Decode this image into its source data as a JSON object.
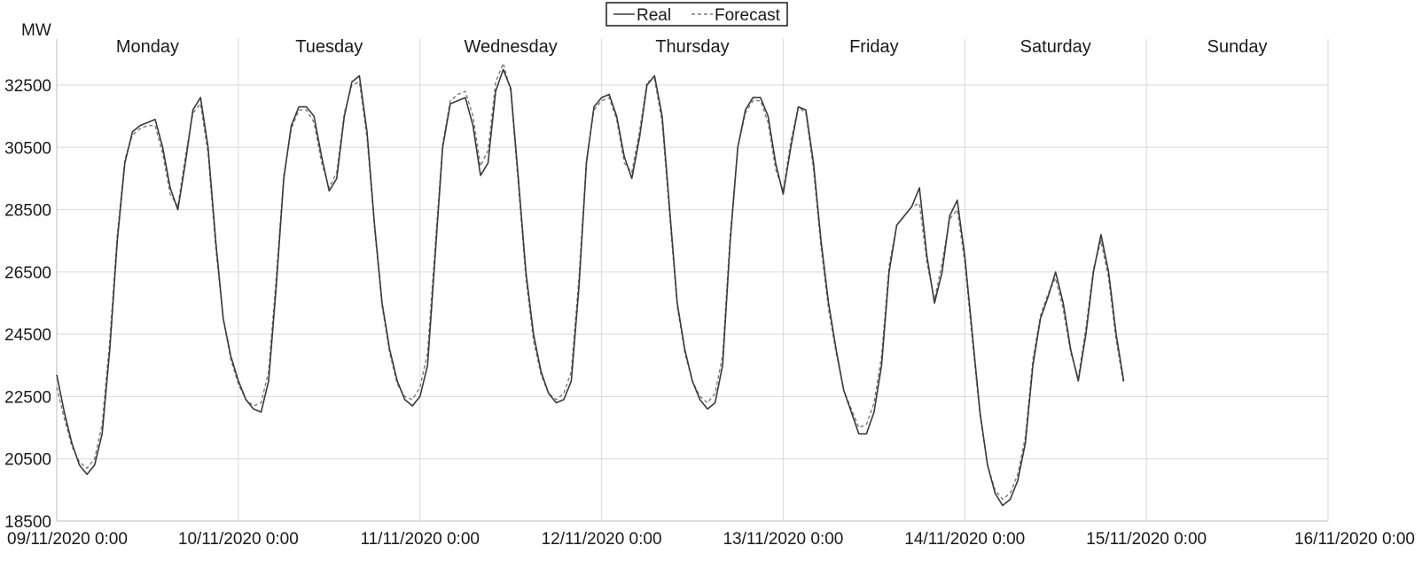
{
  "chart_data": {
    "type": "line",
    "ylabel": "MW",
    "ylim": [
      18500,
      34000
    ],
    "y_ticks": [
      "18500",
      "20500",
      "22500",
      "24500",
      "26500",
      "28500",
      "30500",
      "32500"
    ],
    "x_tick_labels": [
      "09/11/2020 0:00",
      "10/11/2020 0:00",
      "11/11/2020 0:00",
      "12/11/2020 0:00",
      "13/11/2020 0:00",
      "14/11/2020 0:00",
      "15/11/2020 0:00",
      "16/11/2020 0:00"
    ],
    "day_labels": [
      "Monday",
      "Tuesday",
      "Wednesday",
      "Thursday",
      "Friday",
      "Saturday",
      "Sunday"
    ],
    "grid": true,
    "legend": {
      "position": "top-center"
    },
    "x_units": "hours since 09/11/2020 0:00",
    "series": [
      {
        "name": "Real",
        "style": "solid",
        "color": "#3a3a3a",
        "points": [
          [
            0,
            23200
          ],
          [
            1,
            22000
          ],
          [
            2,
            21000
          ],
          [
            3,
            20300
          ],
          [
            4,
            20000
          ],
          [
            5,
            20300
          ],
          [
            6,
            21300
          ],
          [
            7,
            24000
          ],
          [
            8,
            27500
          ],
          [
            9,
            30000
          ],
          [
            10,
            31000
          ],
          [
            11,
            31200
          ],
          [
            12,
            31300
          ],
          [
            13,
            31400
          ],
          [
            14,
            30500
          ],
          [
            15,
            29200
          ],
          [
            16,
            28500
          ],
          [
            17,
            30000
          ],
          [
            18,
            31700
          ],
          [
            19,
            32100
          ],
          [
            20,
            30500
          ],
          [
            21,
            27500
          ],
          [
            22,
            25000
          ],
          [
            23,
            23800
          ],
          [
            24,
            23000
          ],
          [
            25,
            22400
          ],
          [
            26,
            22100
          ],
          [
            27,
            22000
          ],
          [
            28,
            23000
          ],
          [
            29,
            26000
          ],
          [
            30,
            29500
          ],
          [
            31,
            31200
          ],
          [
            32,
            31800
          ],
          [
            33,
            31800
          ],
          [
            34,
            31500
          ],
          [
            35,
            30200
          ],
          [
            36,
            29100
          ],
          [
            37,
            29500
          ],
          [
            38,
            31500
          ],
          [
            39,
            32600
          ],
          [
            40,
            32800
          ],
          [
            41,
            31000
          ],
          [
            42,
            28000
          ],
          [
            43,
            25500
          ],
          [
            44,
            24000
          ],
          [
            45,
            23000
          ],
          [
            46,
            22400
          ],
          [
            47,
            22200
          ],
          [
            48,
            22500
          ],
          [
            49,
            23500
          ],
          [
            50,
            27000
          ],
          [
            51,
            30500
          ],
          [
            52,
            31900
          ],
          [
            53,
            32000
          ],
          [
            54,
            32100
          ],
          [
            55,
            31200
          ],
          [
            56,
            29600
          ],
          [
            57,
            30000
          ],
          [
            58,
            32300
          ],
          [
            59,
            33000
          ],
          [
            60,
            32400
          ],
          [
            61,
            29500
          ],
          [
            62,
            26500
          ],
          [
            63,
            24500
          ],
          [
            64,
            23300
          ],
          [
            65,
            22600
          ],
          [
            66,
            22300
          ],
          [
            67,
            22400
          ],
          [
            68,
            23000
          ],
          [
            69,
            26000
          ],
          [
            70,
            30000
          ],
          [
            71,
            31800
          ],
          [
            72,
            32100
          ],
          [
            73,
            32200
          ],
          [
            74,
            31500
          ],
          [
            75,
            30200
          ],
          [
            76,
            29500
          ],
          [
            77,
            30800
          ],
          [
            78,
            32500
          ],
          [
            79,
            32800
          ],
          [
            80,
            31500
          ],
          [
            81,
            28500
          ],
          [
            82,
            25500
          ],
          [
            83,
            24000
          ],
          [
            84,
            23000
          ],
          [
            85,
            22400
          ],
          [
            86,
            22100
          ],
          [
            87,
            22300
          ],
          [
            88,
            23500
          ],
          [
            89,
            27500
          ],
          [
            90,
            30500
          ],
          [
            91,
            31700
          ],
          [
            92,
            32100
          ],
          [
            93,
            32100
          ],
          [
            94,
            31500
          ],
          [
            95,
            30000
          ],
          [
            96,
            29000
          ],
          [
            97,
            30500
          ],
          [
            98,
            31800
          ],
          [
            99,
            31700
          ],
          [
            100,
            30000
          ],
          [
            101,
            27500
          ],
          [
            102,
            25500
          ],
          [
            103,
            24000
          ],
          [
            104,
            22700
          ],
          [
            105,
            22000
          ],
          [
            106,
            21300
          ],
          [
            107,
            21300
          ],
          [
            108,
            22000
          ],
          [
            109,
            23500
          ],
          [
            110,
            26500
          ],
          [
            111,
            28000
          ],
          [
            112,
            28300
          ],
          [
            113,
            28600
          ],
          [
            114,
            29200
          ],
          [
            115,
            27000
          ],
          [
            116,
            25500
          ],
          [
            117,
            26500
          ],
          [
            118,
            28300
          ],
          [
            119,
            28800
          ],
          [
            120,
            27000
          ],
          [
            121,
            24500
          ],
          [
            122,
            22000
          ],
          [
            123,
            20300
          ],
          [
            124,
            19400
          ],
          [
            125,
            19000
          ],
          [
            126,
            19200
          ],
          [
            127,
            19800
          ],
          [
            128,
            21000
          ],
          [
            129,
            23500
          ],
          [
            130,
            25000
          ],
          [
            131,
            25700
          ],
          [
            132,
            26500
          ],
          [
            133,
            25500
          ],
          [
            134,
            24000
          ],
          [
            135,
            23000
          ],
          [
            136,
            24500
          ],
          [
            137,
            26500
          ],
          [
            138,
            27700
          ],
          [
            139,
            26500
          ],
          [
            140,
            24500
          ],
          [
            141,
            23000
          ]
        ]
      },
      {
        "name": "Forecast",
        "style": "dashed",
        "color": "#7a7a7a",
        "points": [
          [
            0,
            22800
          ],
          [
            1,
            21800
          ],
          [
            2,
            20900
          ],
          [
            3,
            20400
          ],
          [
            4,
            20200
          ],
          [
            5,
            20500
          ],
          [
            6,
            21600
          ],
          [
            7,
            24300
          ],
          [
            8,
            27700
          ],
          [
            9,
            30100
          ],
          [
            10,
            30900
          ],
          [
            11,
            31100
          ],
          [
            12,
            31200
          ],
          [
            13,
            31200
          ],
          [
            14,
            30300
          ],
          [
            15,
            29000
          ],
          [
            16,
            28600
          ],
          [
            17,
            30200
          ],
          [
            18,
            31600
          ],
          [
            19,
            31900
          ],
          [
            20,
            30300
          ],
          [
            21,
            27300
          ],
          [
            22,
            25000
          ],
          [
            23,
            23700
          ],
          [
            24,
            22900
          ],
          [
            25,
            22400
          ],
          [
            26,
            22200
          ],
          [
            27,
            22300
          ],
          [
            28,
            23300
          ],
          [
            29,
            26300
          ],
          [
            30,
            29600
          ],
          [
            31,
            31100
          ],
          [
            32,
            31700
          ],
          [
            33,
            31700
          ],
          [
            34,
            31300
          ],
          [
            35,
            30000
          ],
          [
            36,
            29200
          ],
          [
            37,
            29700
          ],
          [
            38,
            31600
          ],
          [
            39,
            32500
          ],
          [
            40,
            32600
          ],
          [
            41,
            30800
          ],
          [
            42,
            27900
          ],
          [
            43,
            25400
          ],
          [
            44,
            23900
          ],
          [
            45,
            22900
          ],
          [
            46,
            22500
          ],
          [
            47,
            22400
          ],
          [
            48,
            22800
          ],
          [
            49,
            23900
          ],
          [
            50,
            27300
          ],
          [
            51,
            30600
          ],
          [
            52,
            32000
          ],
          [
            53,
            32200
          ],
          [
            54,
            32300
          ],
          [
            55,
            31500
          ],
          [
            56,
            29900
          ],
          [
            57,
            30400
          ],
          [
            58,
            32600
          ],
          [
            59,
            33200
          ],
          [
            60,
            32300
          ],
          [
            61,
            29300
          ],
          [
            62,
            26300
          ],
          [
            63,
            24300
          ],
          [
            64,
            23200
          ],
          [
            65,
            22600
          ],
          [
            66,
            22400
          ],
          [
            67,
            22600
          ],
          [
            68,
            23300
          ],
          [
            69,
            26300
          ],
          [
            70,
            30100
          ],
          [
            71,
            31700
          ],
          [
            72,
            32000
          ],
          [
            73,
            32100
          ],
          [
            74,
            31400
          ],
          [
            75,
            30000
          ],
          [
            76,
            29700
          ],
          [
            77,
            31000
          ],
          [
            78,
            32600
          ],
          [
            79,
            32700
          ],
          [
            80,
            31300
          ],
          [
            81,
            28300
          ],
          [
            82,
            25400
          ],
          [
            83,
            23900
          ],
          [
            84,
            23000
          ],
          [
            85,
            22500
          ],
          [
            86,
            22300
          ],
          [
            87,
            22600
          ],
          [
            88,
            23800
          ],
          [
            89,
            27700
          ],
          [
            90,
            30500
          ],
          [
            91,
            31600
          ],
          [
            92,
            32000
          ],
          [
            93,
            32000
          ],
          [
            94,
            31300
          ],
          [
            95,
            29800
          ],
          [
            96,
            29100
          ],
          [
            97,
            30700
          ],
          [
            98,
            31800
          ],
          [
            99,
            31600
          ],
          [
            100,
            29800
          ],
          [
            101,
            27300
          ],
          [
            102,
            25300
          ],
          [
            103,
            23900
          ],
          [
            104,
            22700
          ],
          [
            105,
            22100
          ],
          [
            106,
            21500
          ],
          [
            107,
            21600
          ],
          [
            108,
            22300
          ],
          [
            109,
            23800
          ],
          [
            110,
            26700
          ],
          [
            111,
            28000
          ],
          [
            112,
            28300
          ],
          [
            113,
            28600
          ],
          [
            114,
            28700
          ],
          [
            115,
            26800
          ],
          [
            116,
            25600
          ],
          [
            117,
            26800
          ],
          [
            118,
            28200
          ],
          [
            119,
            28500
          ],
          [
            120,
            26800
          ],
          [
            121,
            24300
          ],
          [
            122,
            21900
          ],
          [
            123,
            20300
          ],
          [
            124,
            19500
          ],
          [
            125,
            19200
          ],
          [
            126,
            19400
          ],
          [
            127,
            20000
          ],
          [
            128,
            21200
          ],
          [
            129,
            23700
          ],
          [
            130,
            25100
          ],
          [
            131,
            25800
          ],
          [
            132,
            26300
          ],
          [
            133,
            25300
          ],
          [
            134,
            23900
          ],
          [
            135,
            23100
          ],
          [
            136,
            24700
          ],
          [
            137,
            26600
          ],
          [
            138,
            27500
          ],
          [
            139,
            26300
          ],
          [
            140,
            24300
          ],
          [
            141,
            22900
          ]
        ]
      }
    ]
  }
}
